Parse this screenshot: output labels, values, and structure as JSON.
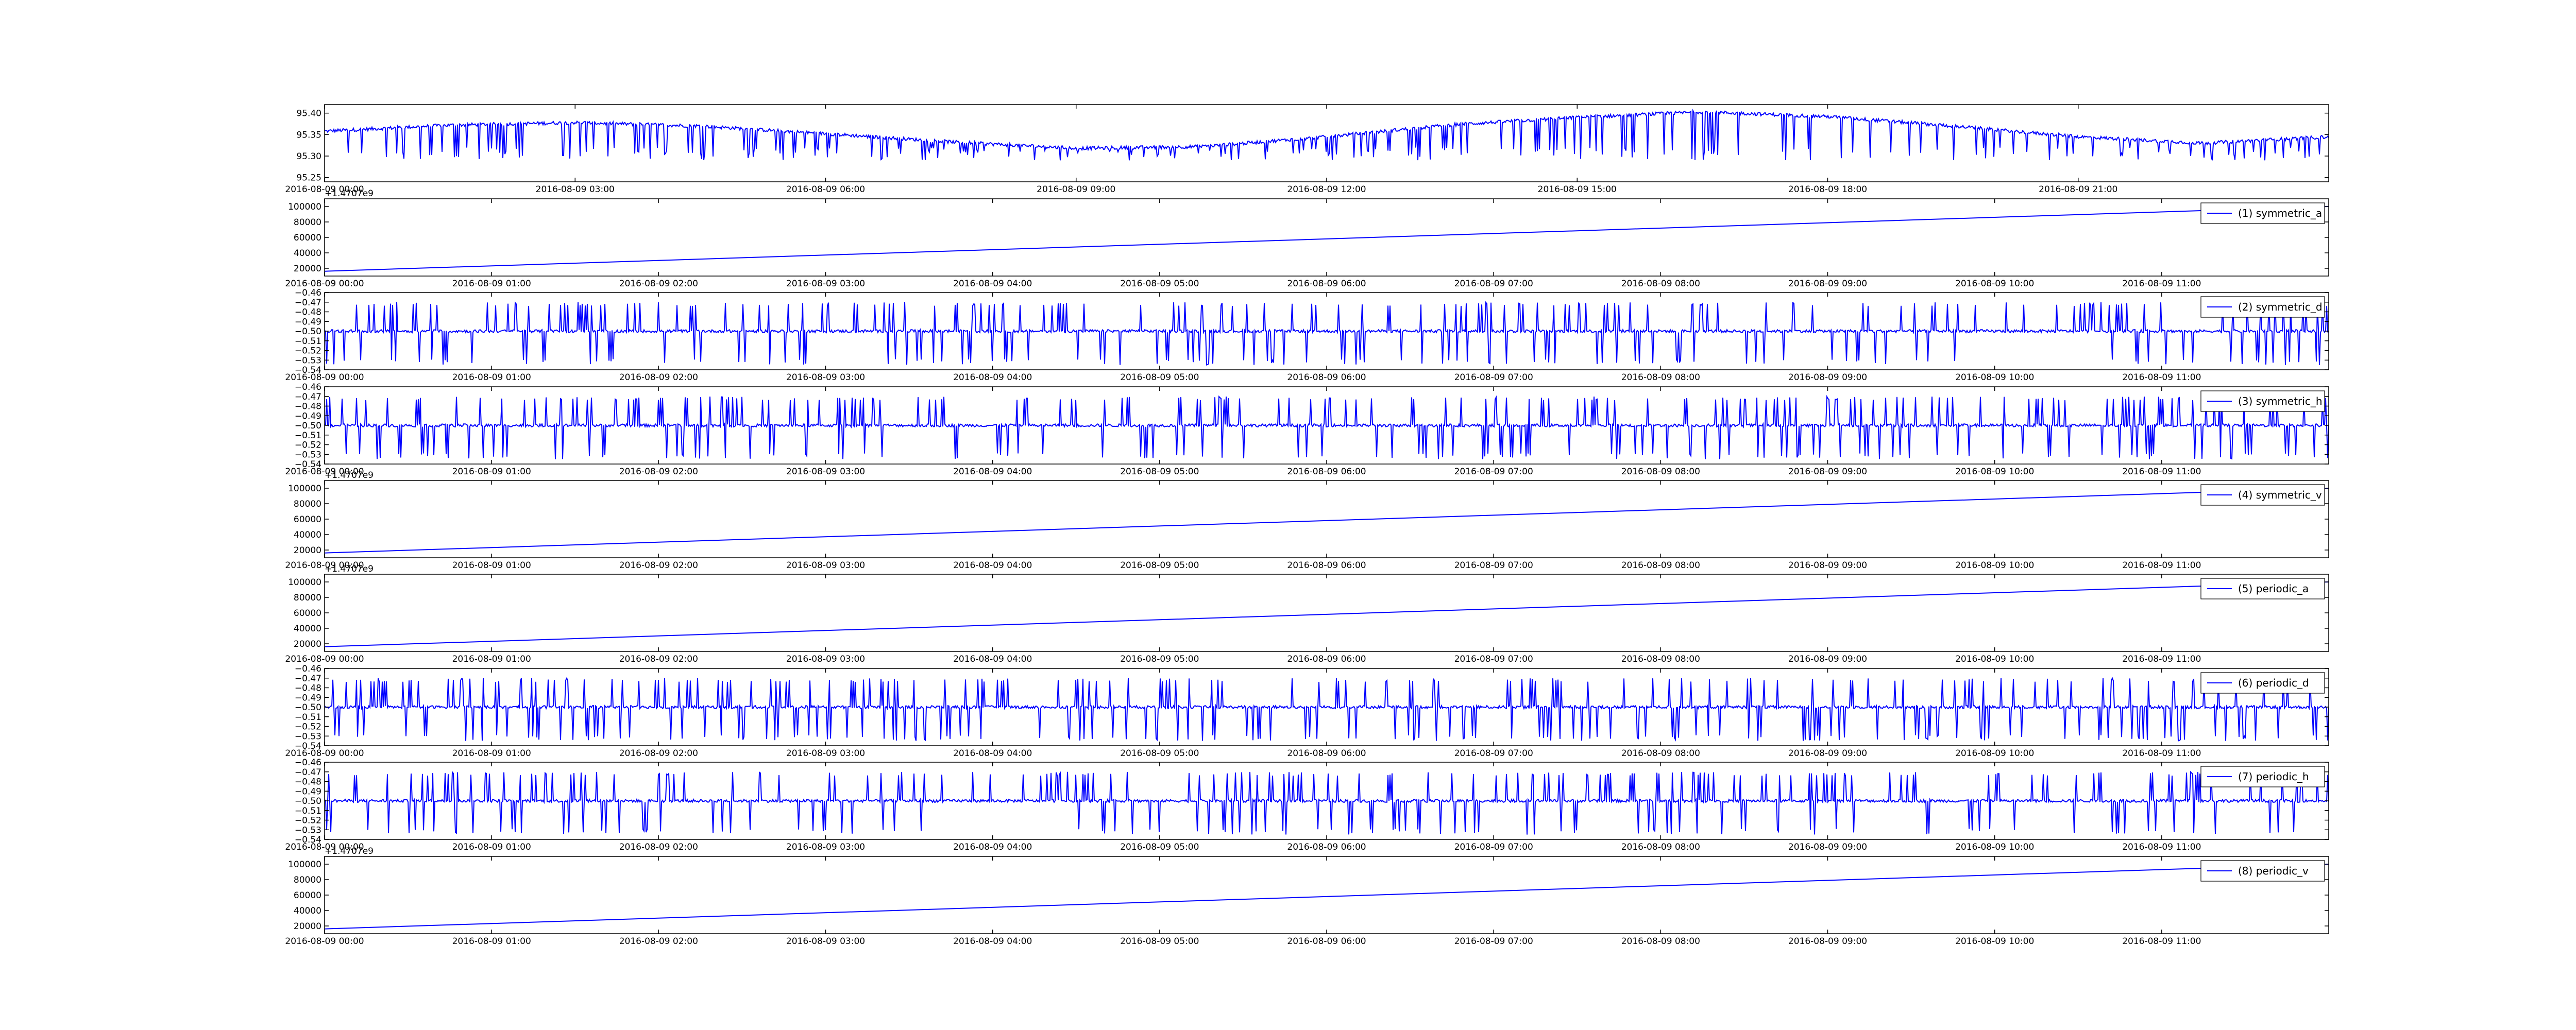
{
  "chart_data": [
    {
      "type": "line",
      "title": "",
      "xlabel": "",
      "ylabel": "",
      "legend": null,
      "x_tick_labels": [
        "2016-08-09 00:00",
        "2016-08-09 03:00",
        "2016-08-09 06:00",
        "2016-08-09 09:00",
        "2016-08-09 12:00",
        "2016-08-09 15:00",
        "2016-08-09 18:00",
        "2016-08-09 21:00"
      ],
      "xlim_hours": [
        0,
        24
      ],
      "y_tick_labels": [
        "95.25",
        "95.30",
        "95.35",
        "95.40"
      ],
      "ylim": [
        95.24,
        95.42
      ],
      "series": [
        {
          "color": "#0000ff",
          "pattern": "dense_with_dips",
          "x_hours": [
            0,
            1.5,
            3,
            4.5,
            6,
            7.5,
            9,
            10.5,
            12,
            13.5,
            15,
            16.5,
            18,
            19.5,
            21,
            22.5,
            24
          ],
          "y": [
            95.358,
            95.372,
            95.378,
            95.37,
            95.352,
            95.333,
            95.318,
            95.322,
            95.345,
            95.373,
            95.39,
            95.403,
            95.392,
            95.37,
            95.345,
            95.33,
            95.345
          ],
          "dip_min": 95.29
        }
      ]
    },
    {
      "type": "line",
      "title": "",
      "offset_text": "+1.4707e9",
      "legend": {
        "label": "(1) symmetric_a",
        "location": "upper right"
      },
      "x_tick_labels": [
        "2016-08-09 00:00",
        "2016-08-09 01:00",
        "2016-08-09 02:00",
        "2016-08-09 03:00",
        "2016-08-09 04:00",
        "2016-08-09 05:00",
        "2016-08-09 06:00",
        "2016-08-09 07:00",
        "2016-08-09 08:00",
        "2016-08-09 09:00",
        "2016-08-09 10:00",
        "2016-08-09 11:00"
      ],
      "xlim_hours": [
        0,
        12
      ],
      "y_tick_labels": [
        "20000",
        "40000",
        "60000",
        "80000",
        "100000"
      ],
      "ylim": [
        10000,
        110000
      ],
      "series": [
        {
          "name": "(1) symmetric_a",
          "color": "#0000ff",
          "pattern": "line",
          "x_hours": [
            0,
            12
          ],
          "y": [
            16200,
            100000
          ]
        }
      ]
    },
    {
      "type": "line",
      "title": "",
      "legend": {
        "label": "(2) symmetric_d",
        "location": "upper right"
      },
      "x_tick_labels": [
        "2016-08-09 00:00",
        "2016-08-09 01:00",
        "2016-08-09 02:00",
        "2016-08-09 03:00",
        "2016-08-09 04:00",
        "2016-08-09 05:00",
        "2016-08-09 06:00",
        "2016-08-09 07:00",
        "2016-08-09 08:00",
        "2016-08-09 09:00",
        "2016-08-09 10:00",
        "2016-08-09 11:00"
      ],
      "xlim_hours": [
        0,
        12
      ],
      "y_tick_labels": [
        "−0.54",
        "−0.53",
        "−0.52",
        "−0.51",
        "−0.50",
        "−0.49",
        "−0.48",
        "−0.47",
        "−0.46"
      ],
      "ylim": [
        -0.54,
        -0.46
      ],
      "series": [
        {
          "name": "(2) symmetric_d",
          "color": "#0000ff",
          "pattern": "noisy_spikes",
          "center": -0.5,
          "spike_high": -0.47,
          "spike_low": -0.535
        }
      ]
    },
    {
      "type": "line",
      "title": "",
      "legend": {
        "label": "(3) symmetric_h",
        "location": "upper right"
      },
      "x_tick_labels": [
        "2016-08-09 00:00",
        "2016-08-09 01:00",
        "2016-08-09 02:00",
        "2016-08-09 03:00",
        "2016-08-09 04:00",
        "2016-08-09 05:00",
        "2016-08-09 06:00",
        "2016-08-09 07:00",
        "2016-08-09 08:00",
        "2016-08-09 09:00",
        "2016-08-09 10:00",
        "2016-08-09 11:00"
      ],
      "xlim_hours": [
        0,
        12
      ],
      "y_tick_labels": [
        "−0.54",
        "−0.53",
        "−0.52",
        "−0.51",
        "−0.50",
        "−0.49",
        "−0.48",
        "−0.47",
        "−0.46"
      ],
      "ylim": [
        -0.54,
        -0.46
      ],
      "series": [
        {
          "name": "(3) symmetric_h",
          "color": "#0000ff",
          "pattern": "noisy_spikes",
          "center": -0.5,
          "spike_high": -0.47,
          "spike_low": -0.535
        }
      ]
    },
    {
      "type": "line",
      "title": "",
      "offset_text": "+1.4707e9",
      "legend": {
        "label": "(4) symmetric_v",
        "location": "upper right"
      },
      "x_tick_labels": [
        "2016-08-09 00:00",
        "2016-08-09 01:00",
        "2016-08-09 02:00",
        "2016-08-09 03:00",
        "2016-08-09 04:00",
        "2016-08-09 05:00",
        "2016-08-09 06:00",
        "2016-08-09 07:00",
        "2016-08-09 08:00",
        "2016-08-09 09:00",
        "2016-08-09 10:00",
        "2016-08-09 11:00"
      ],
      "xlim_hours": [
        0,
        12
      ],
      "y_tick_labels": [
        "20000",
        "40000",
        "60000",
        "80000",
        "100000"
      ],
      "ylim": [
        10000,
        110000
      ],
      "series": [
        {
          "name": "(4) symmetric_v",
          "color": "#0000ff",
          "pattern": "line",
          "x_hours": [
            0,
            12
          ],
          "y": [
            16200,
            100000
          ]
        }
      ]
    },
    {
      "type": "line",
      "title": "",
      "offset_text": "+1.4707e9",
      "legend": {
        "label": "(5) periodic_a",
        "location": "upper right"
      },
      "x_tick_labels": [
        "2016-08-09 00:00",
        "2016-08-09 01:00",
        "2016-08-09 02:00",
        "2016-08-09 03:00",
        "2016-08-09 04:00",
        "2016-08-09 05:00",
        "2016-08-09 06:00",
        "2016-08-09 07:00",
        "2016-08-09 08:00",
        "2016-08-09 09:00",
        "2016-08-09 10:00",
        "2016-08-09 11:00"
      ],
      "xlim_hours": [
        0,
        12
      ],
      "y_tick_labels": [
        "20000",
        "40000",
        "60000",
        "80000",
        "100000"
      ],
      "ylim": [
        10000,
        110000
      ],
      "series": [
        {
          "name": "(5) periodic_a",
          "color": "#0000ff",
          "pattern": "line",
          "x_hours": [
            0,
            12
          ],
          "y": [
            16200,
            100000
          ]
        }
      ]
    },
    {
      "type": "line",
      "title": "",
      "legend": {
        "label": "(6) periodic_d",
        "location": "upper right"
      },
      "x_tick_labels": [
        "2016-08-09 00:00",
        "2016-08-09 01:00",
        "2016-08-09 02:00",
        "2016-08-09 03:00",
        "2016-08-09 04:00",
        "2016-08-09 05:00",
        "2016-08-09 06:00",
        "2016-08-09 07:00",
        "2016-08-09 08:00",
        "2016-08-09 09:00",
        "2016-08-09 10:00",
        "2016-08-09 11:00"
      ],
      "xlim_hours": [
        0,
        12
      ],
      "y_tick_labels": [
        "−0.54",
        "−0.53",
        "−0.52",
        "−0.51",
        "−0.50",
        "−0.49",
        "−0.48",
        "−0.47",
        "−0.46"
      ],
      "ylim": [
        -0.54,
        -0.46
      ],
      "series": [
        {
          "name": "(6) periodic_d",
          "color": "#0000ff",
          "pattern": "noisy_spikes",
          "center": -0.5,
          "spike_high": -0.47,
          "spike_low": -0.535
        }
      ]
    },
    {
      "type": "line",
      "title": "",
      "legend": {
        "label": "(7) periodic_h",
        "location": "upper right"
      },
      "x_tick_labels": [
        "2016-08-09 00:00",
        "2016-08-09 01:00",
        "2016-08-09 02:00",
        "2016-08-09 03:00",
        "2016-08-09 04:00",
        "2016-08-09 05:00",
        "2016-08-09 06:00",
        "2016-08-09 07:00",
        "2016-08-09 08:00",
        "2016-08-09 09:00",
        "2016-08-09 10:00",
        "2016-08-09 11:00"
      ],
      "xlim_hours": [
        0,
        12
      ],
      "y_tick_labels": [
        "−0.54",
        "−0.53",
        "−0.52",
        "−0.51",
        "−0.50",
        "−0.49",
        "−0.48",
        "−0.47",
        "−0.46"
      ],
      "ylim": [
        -0.54,
        -0.46
      ],
      "series": [
        {
          "name": "(7) periodic_h",
          "color": "#0000ff",
          "pattern": "noisy_spikes",
          "center": -0.5,
          "spike_high": -0.47,
          "spike_low": -0.535
        }
      ]
    },
    {
      "type": "line",
      "title": "",
      "offset_text": "+1.4707e9",
      "legend": {
        "label": "(8) periodic_v",
        "location": "upper right"
      },
      "x_tick_labels": [
        "2016-08-09 00:00",
        "2016-08-09 01:00",
        "2016-08-09 02:00",
        "2016-08-09 03:00",
        "2016-08-09 04:00",
        "2016-08-09 05:00",
        "2016-08-09 06:00",
        "2016-08-09 07:00",
        "2016-08-09 08:00",
        "2016-08-09 09:00",
        "2016-08-09 10:00",
        "2016-08-09 11:00"
      ],
      "xlim_hours": [
        0,
        12
      ],
      "y_tick_labels": [
        "20000",
        "40000",
        "60000",
        "80000",
        "100000"
      ],
      "ylim": [
        10000,
        110000
      ],
      "series": [
        {
          "name": "(8) periodic_v",
          "color": "#0000ff",
          "pattern": "line",
          "x_hours": [
            0,
            12
          ],
          "y": [
            16200,
            100000
          ]
        }
      ]
    }
  ]
}
